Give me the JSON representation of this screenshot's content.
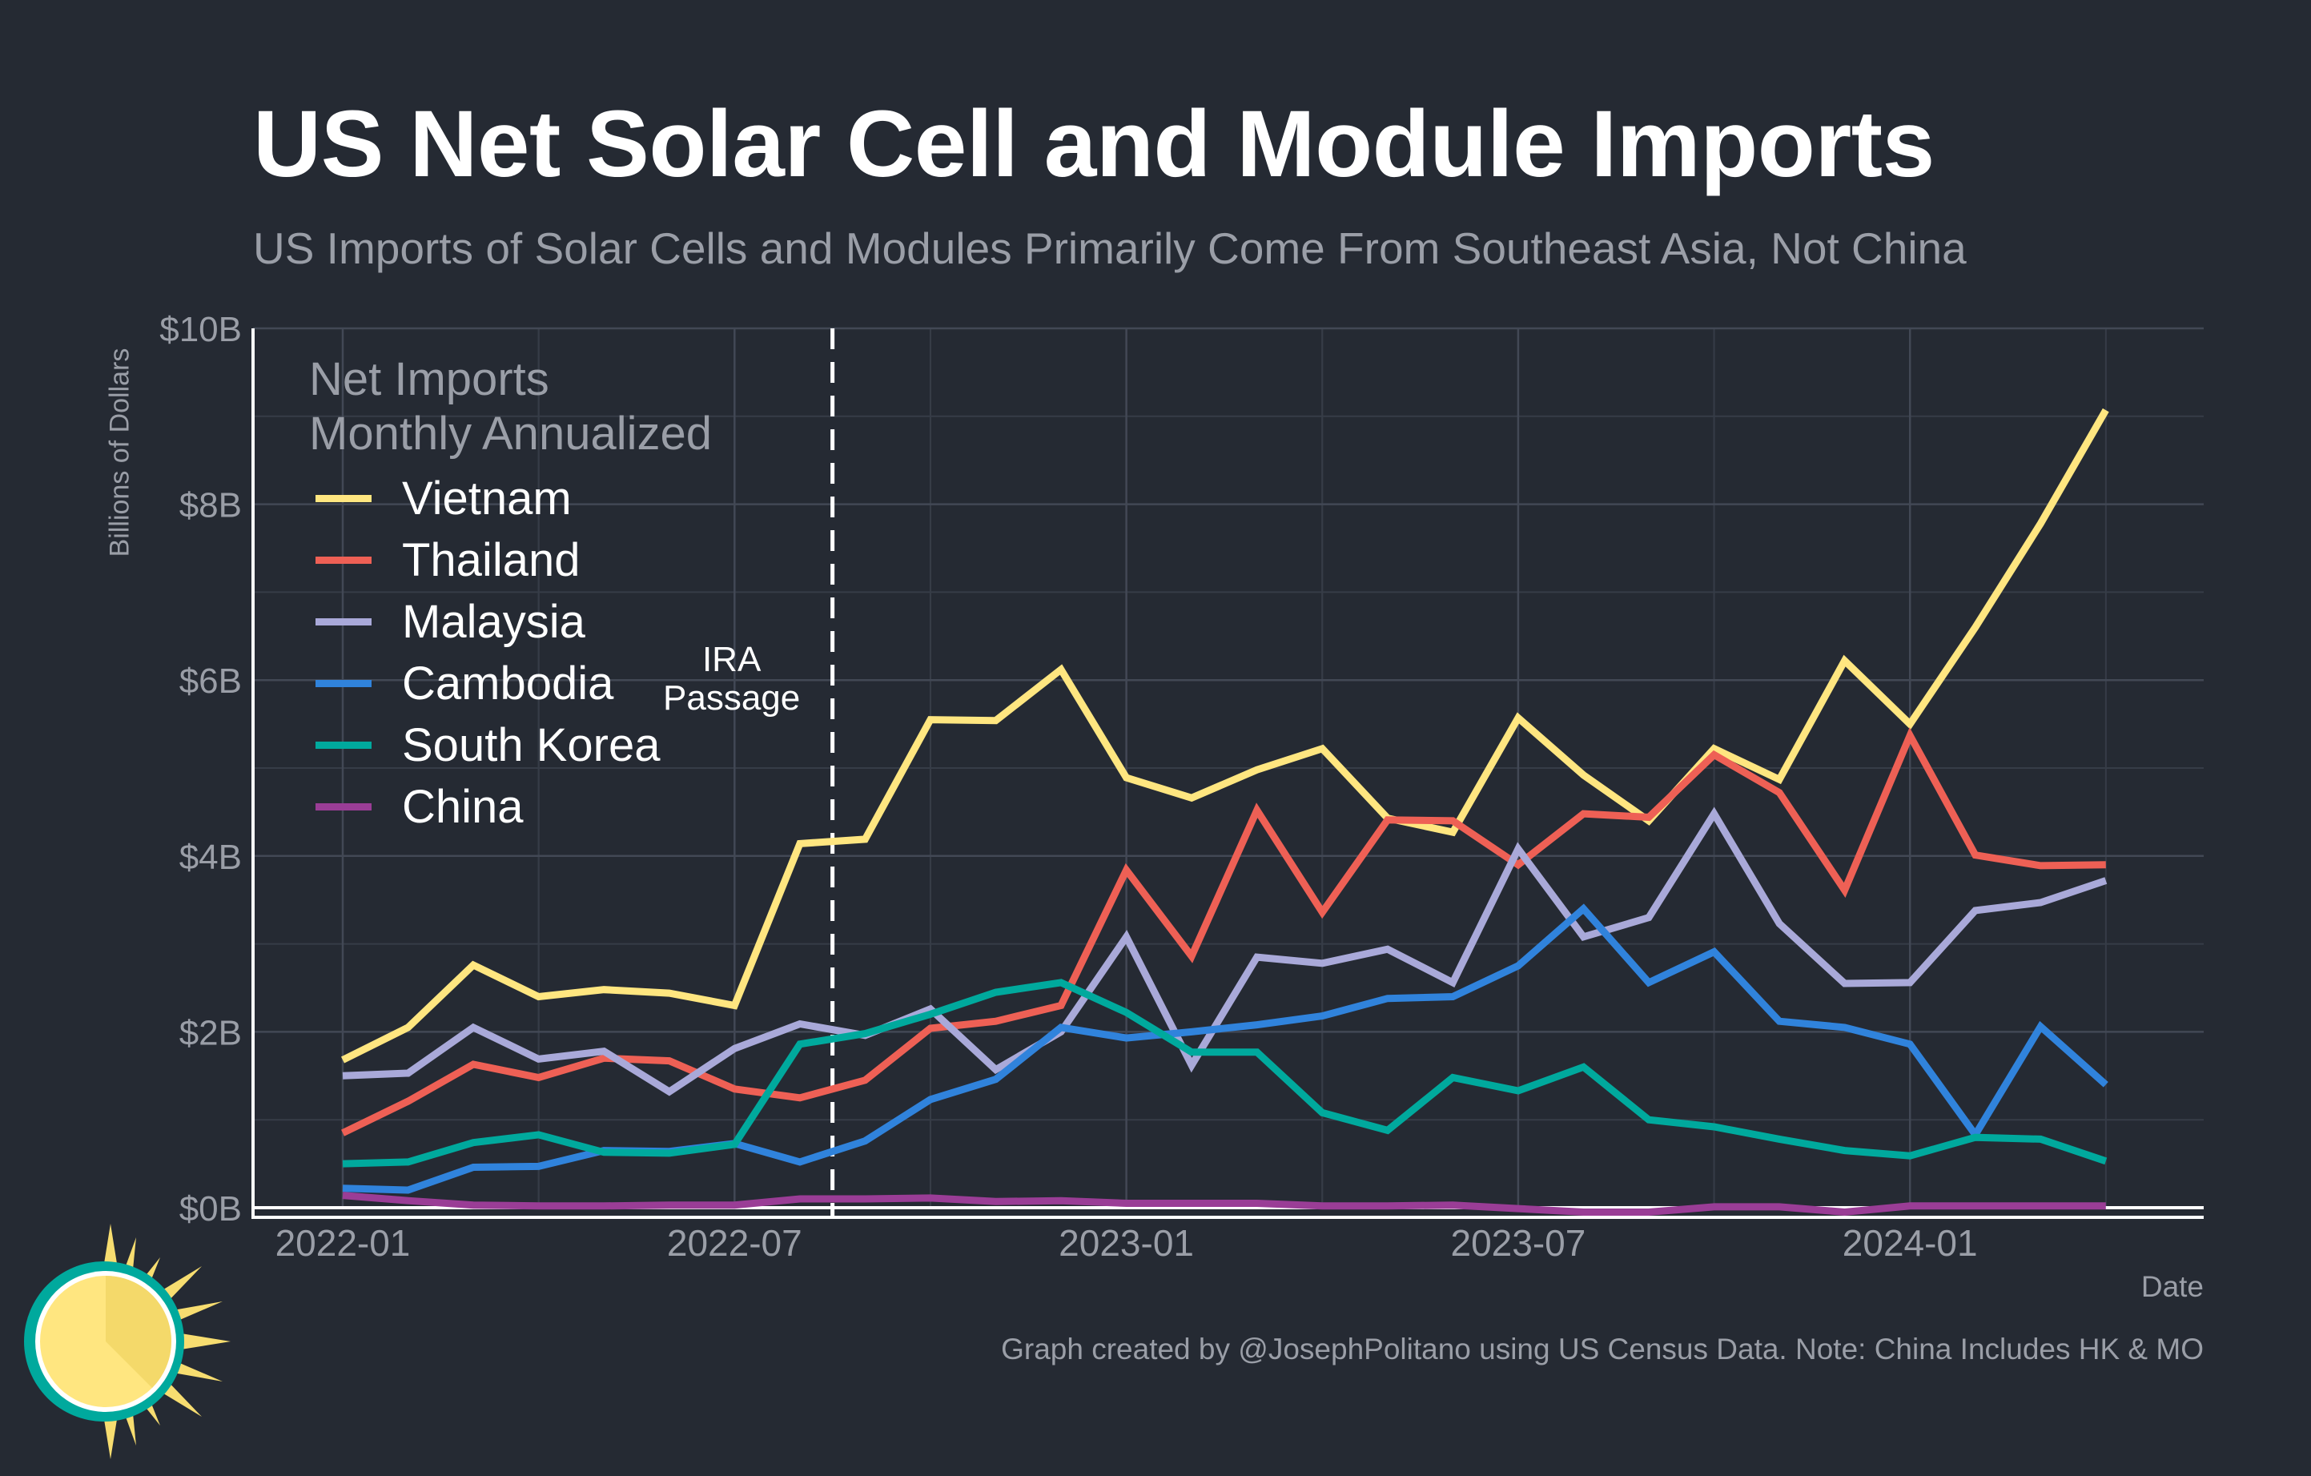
{
  "title": "US Net Solar Cell and Module Imports",
  "subtitle": "US Imports of Solar Cells and Modules Primarily Come From Southeast Asia, Not China",
  "caption": "Graph created by @JosephPolitano using US Census Data. Note: China Includes HK & MO",
  "chart_data": {
    "type": "line",
    "ylabel": "Billions of Dollars",
    "xlabel": "Date",
    "ylim": [
      0,
      10
    ],
    "y_ticks": [
      0,
      2,
      4,
      6,
      8,
      10
    ],
    "y_tick_labels": [
      "$0B",
      "$2B",
      "$4B",
      "$6B",
      "$8B",
      "$10B"
    ],
    "x_ticks": [
      "2022-01",
      "2022-07",
      "2023-01",
      "2023-07",
      "2024-01"
    ],
    "grid": true,
    "legend_position": "top-left",
    "legend_title": [
      "Net Imports",
      "Monthly Annualized"
    ],
    "annotation": {
      "text": [
        "IRA",
        "Passage"
      ],
      "x": "2022-08-16"
    },
    "x": [
      "2022-01",
      "2022-02",
      "2022-03",
      "2022-04",
      "2022-05",
      "2022-06",
      "2022-07",
      "2022-08",
      "2022-09",
      "2022-10",
      "2022-11",
      "2022-12",
      "2023-01",
      "2023-02",
      "2023-03",
      "2023-04",
      "2023-05",
      "2023-06",
      "2023-07",
      "2023-08",
      "2023-09",
      "2023-10",
      "2023-11",
      "2023-12",
      "2024-01",
      "2024-02",
      "2024-03",
      "2024-04"
    ],
    "series": [
      {
        "name": "Vietnam",
        "color": "#ffe680",
        "values": [
          1.68,
          2.05,
          2.76,
          2.4,
          2.48,
          2.44,
          2.3,
          4.14,
          4.19,
          5.55,
          5.54,
          6.12,
          4.89,
          4.66,
          4.98,
          5.22,
          4.43,
          4.27,
          5.57,
          4.92,
          4.4,
          5.22,
          4.87,
          6.22,
          5.5,
          6.6,
          7.78,
          9.07
        ]
      },
      {
        "name": "Thailand",
        "color": "#ee6055",
        "values": [
          0.85,
          1.21,
          1.63,
          1.48,
          1.7,
          1.67,
          1.35,
          1.25,
          1.45,
          2.04,
          2.12,
          2.3,
          3.84,
          2.86,
          4.52,
          3.36,
          4.41,
          4.4,
          3.9,
          4.48,
          4.44,
          5.15,
          4.72,
          3.61,
          5.37,
          4.01,
          3.89,
          3.9
        ]
      },
      {
        "name": "Malaysia",
        "color": "#a9a9d9",
        "values": [
          1.5,
          1.53,
          2.05,
          1.69,
          1.78,
          1.32,
          1.81,
          2.09,
          1.96,
          2.26,
          1.57,
          2.0,
          3.08,
          1.62,
          2.85,
          2.78,
          2.94,
          2.56,
          4.08,
          3.08,
          3.3,
          4.48,
          3.23,
          2.55,
          2.56,
          3.38,
          3.47,
          3.72
        ]
      },
      {
        "name": "Cambodia",
        "color": "#3083dc",
        "values": [
          0.22,
          0.2,
          0.46,
          0.47,
          0.65,
          0.64,
          0.73,
          0.52,
          0.76,
          1.23,
          1.46,
          2.05,
          1.93,
          2.0,
          2.08,
          2.18,
          2.38,
          2.4,
          2.75,
          3.4,
          2.56,
          2.91,
          2.12,
          2.05,
          1.86,
          0.83,
          2.06,
          1.4
        ]
      },
      {
        "name": "South Korea",
        "color": "#00a99d",
        "values": [
          0.5,
          0.52,
          0.74,
          0.83,
          0.63,
          0.62,
          0.72,
          1.86,
          1.98,
          2.2,
          2.45,
          2.56,
          2.22,
          1.77,
          1.77,
          1.08,
          0.88,
          1.48,
          1.33,
          1.6,
          1.0,
          0.92,
          0.78,
          0.65,
          0.59,
          0.8,
          0.78,
          0.53
        ]
      },
      {
        "name": "China",
        "color": "#9a3d96",
        "values": [
          0.14,
          0.08,
          0.03,
          0.02,
          0.02,
          0.03,
          0.03,
          0.1,
          0.1,
          0.11,
          0.07,
          0.08,
          0.05,
          0.05,
          0.05,
          0.02,
          0.02,
          0.03,
          -0.01,
          -0.05,
          -0.05,
          0.01,
          0.01,
          -0.05,
          0.02,
          0.02,
          0.02,
          0.02
        ]
      }
    ]
  }
}
